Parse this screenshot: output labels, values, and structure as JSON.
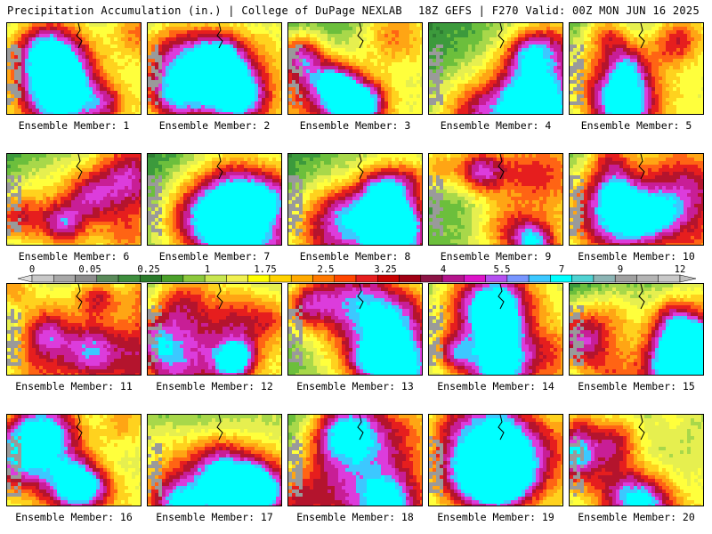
{
  "header": {
    "title_left": "Precipitation Accumulation (in.) | College of DuPage NEXLAB",
    "title_right": "18Z GEFS | F270 Valid: 00Z MON JUN 16 2025"
  },
  "members": [
    {
      "label": "Ensemble Member: 1",
      "seed": 11
    },
    {
      "label": "Ensemble Member: 2",
      "seed": 23
    },
    {
      "label": "Ensemble Member: 3",
      "seed": 37
    },
    {
      "label": "Ensemble Member: 4",
      "seed": 41
    },
    {
      "label": "Ensemble Member: 5",
      "seed": 53
    },
    {
      "label": "Ensemble Member: 6",
      "seed": 67
    },
    {
      "label": "Ensemble Member: 7",
      "seed": 71
    },
    {
      "label": "Ensemble Member: 8",
      "seed": 83
    },
    {
      "label": "Ensemble Member: 9",
      "seed": 97
    },
    {
      "label": "Ensemble Member: 10",
      "seed": 101
    },
    {
      "label": "Ensemble Member: 11",
      "seed": 113
    },
    {
      "label": "Ensemble Member: 12",
      "seed": 127
    },
    {
      "label": "Ensemble Member: 13",
      "seed": 131
    },
    {
      "label": "Ensemble Member: 14",
      "seed": 149
    },
    {
      "label": "Ensemble Member: 15",
      "seed": 151
    },
    {
      "label": "Ensemble Member: 16",
      "seed": 163
    },
    {
      "label": "Ensemble Member: 17",
      "seed": 173
    },
    {
      "label": "Ensemble Member: 18",
      "seed": 181
    },
    {
      "label": "Ensemble Member: 19",
      "seed": 191
    },
    {
      "label": "Ensemble Member: 20",
      "seed": 199
    }
  ],
  "colorbar": {
    "tick_labels": [
      "0",
      "0.05",
      "0.25",
      "1",
      "1.75",
      "2.5",
      "3.25",
      "4",
      "5.5",
      "7",
      "9",
      "12"
    ],
    "colors": [
      "#c8c8c8",
      "#a8a8a8",
      "#8c8c8c",
      "#5a8a5a",
      "#3e8e3e",
      "#2a7a2a",
      "#4aa02a",
      "#8cc83c",
      "#c8e650",
      "#f0f050",
      "#ffff00",
      "#ffd200",
      "#ffaa00",
      "#ff7800",
      "#ff4600",
      "#e61e1e",
      "#c80000",
      "#a00014",
      "#8c1446",
      "#b4148c",
      "#dc14c8",
      "#b450f0",
      "#7896ff",
      "#3cc8ff",
      "#00ffff",
      "#50d2d2",
      "#8cb4b4",
      "#a0a0a0",
      "#b4b4b4",
      "#c8c8c8"
    ]
  }
}
